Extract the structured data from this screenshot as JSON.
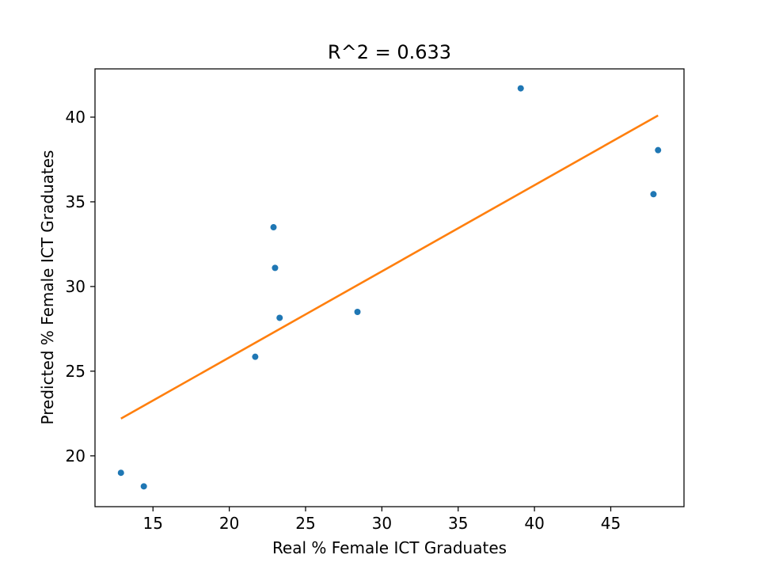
{
  "chart_data": {
    "type": "scatter",
    "title": "R^2 = 0.633",
    "xlabel": "Real % Female ICT Graduates",
    "ylabel": "Predicted % Female ICT Graduates",
    "xlim": [
      11.2,
      49.8
    ],
    "ylim": [
      17.0,
      42.85
    ],
    "xticks": [
      15,
      20,
      25,
      30,
      35,
      40,
      45
    ],
    "yticks": [
      20,
      25,
      30,
      35,
      40
    ],
    "grid": false,
    "legend": "none",
    "series": [
      {
        "kind": "scatter",
        "color": "#1f77b4",
        "points": [
          {
            "x": 12.9,
            "y": 19.0
          },
          {
            "x": 14.4,
            "y": 18.2
          },
          {
            "x": 21.7,
            "y": 25.85
          },
          {
            "x": 22.9,
            "y": 33.5
          },
          {
            "x": 23.0,
            "y": 31.1
          },
          {
            "x": 23.3,
            "y": 28.15
          },
          {
            "x": 28.4,
            "y": 28.5
          },
          {
            "x": 39.1,
            "y": 41.7
          },
          {
            "x": 47.8,
            "y": 35.45
          },
          {
            "x": 48.1,
            "y": 38.05
          }
        ]
      },
      {
        "kind": "line",
        "color": "#ff7f0e",
        "points": [
          {
            "x": 12.9,
            "y": 22.2
          },
          {
            "x": 48.1,
            "y": 40.1
          }
        ]
      }
    ]
  }
}
